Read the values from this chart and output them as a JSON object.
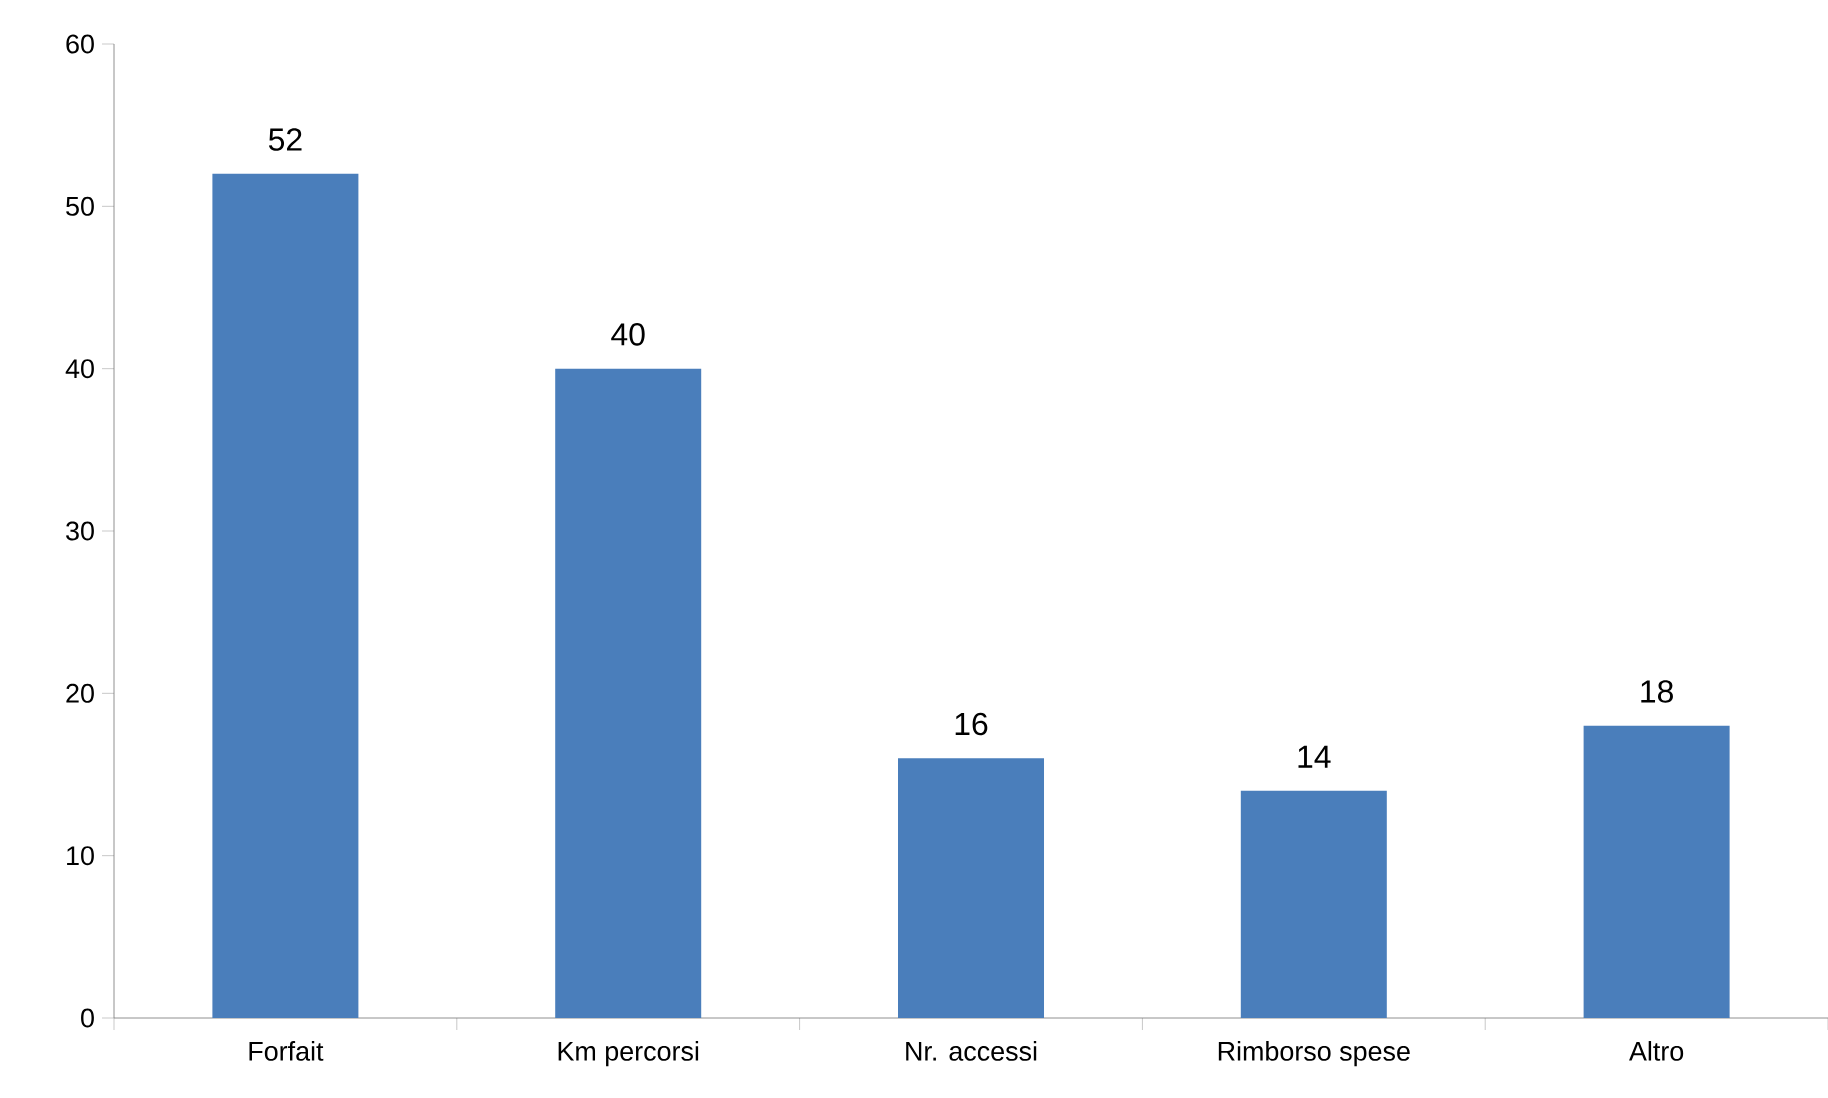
{
  "chart_data": {
    "type": "bar",
    "categories": [
      "Forfait",
      "Km percorsi",
      "Nr. accessi",
      "Rimborso spese",
      "Altro"
    ],
    "values": [
      52,
      40,
      16,
      14,
      18
    ],
    "color": "#4a7ebb",
    "ylim": [
      0,
      60
    ],
    "yticks": [
      0,
      10,
      20,
      30,
      40,
      50,
      60
    ],
    "data_labels": true
  }
}
